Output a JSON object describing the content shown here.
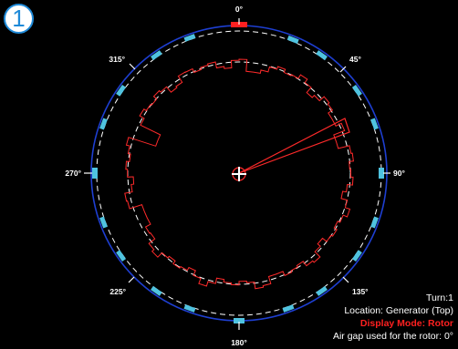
{
  "view_badge": "1",
  "angle_labels": {
    "a0": "0°",
    "a45": "45°",
    "a90": "90°",
    "a135": "135°",
    "a180": "180°",
    "a225": "225°",
    "a270": "270°",
    "a315": "315°"
  },
  "info": {
    "turn": "Turn:1",
    "location": "Location: Generator (Top)",
    "display_mode": "Display Mode: Rotor",
    "air_gap": "Air gap used for the rotor: 0°"
  },
  "colors": {
    "stator_circle": "#1e3fd2",
    "reference_dash": "#ffffff",
    "rotor_outline": "#ff2a2a",
    "sensor_marker": "#4fc3e0",
    "zero_marker": "#ff2020",
    "display_mode_text": "#ff2020"
  },
  "icons": {
    "center": "crosshair-icon",
    "badge": "circled-one-icon"
  }
}
